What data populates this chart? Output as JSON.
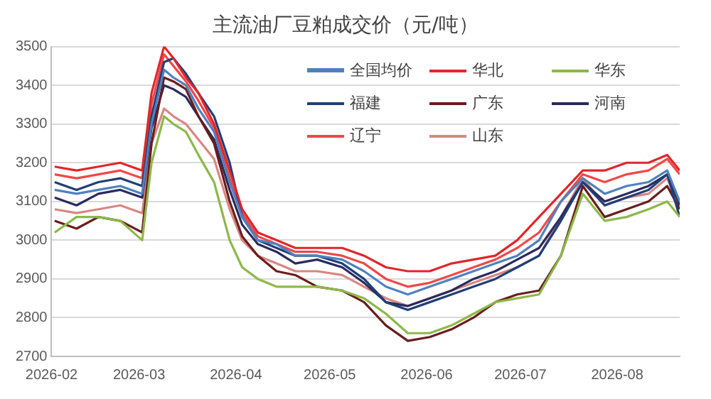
{
  "chart_data": {
    "type": "line",
    "title": "主流油厂豆粕成交价（元/吨）",
    "x": [
      "2026-02-02",
      "2026-02-09",
      "2026-02-16",
      "2026-02-23",
      "2026-03-02",
      "2026-03-05",
      "2026-03-09",
      "2026-03-12",
      "2026-03-16",
      "2026-03-20",
      "2026-03-25",
      "2026-03-30",
      "2026-04-03",
      "2026-04-08",
      "2026-04-14",
      "2026-04-20",
      "2026-04-27",
      "2026-05-05",
      "2026-05-12",
      "2026-05-19",
      "2026-05-26",
      "2026-06-02",
      "2026-06-09",
      "2026-06-16",
      "2026-06-23",
      "2026-06-30",
      "2026-07-07",
      "2026-07-14",
      "2026-07-21",
      "2026-07-28",
      "2026-08-04",
      "2026-08-11",
      "2026-08-17",
      "2026-08-21"
    ],
    "series": [
      {
        "name": "全国均价",
        "color": "#4f81bd",
        "values": [
          3130,
          3120,
          3130,
          3140,
          3120,
          3300,
          3440,
          3420,
          3400,
          3340,
          3280,
          3150,
          3060,
          3000,
          2990,
          2960,
          2960,
          2950,
          2920,
          2880,
          2860,
          2880,
          2900,
          2920,
          2940,
          2960,
          3000,
          3100,
          3160,
          3120,
          3140,
          3150,
          3180,
          3100
        ]
      },
      {
        "name": "华北",
        "color": "#e0262b",
        "values": [
          3190,
          3180,
          3190,
          3200,
          3180,
          3380,
          3500,
          3470,
          3420,
          3380,
          3300,
          3180,
          3080,
          3020,
          3000,
          2980,
          2980,
          2980,
          2960,
          2930,
          2920,
          2920,
          2940,
          2950,
          2960,
          3000,
          3060,
          3120,
          3180,
          3180,
          3200,
          3200,
          3220,
          3180
        ]
      },
      {
        "name": "华东",
        "color": "#8db84a",
        "values": [
          3020,
          3060,
          3060,
          3050,
          3000,
          3200,
          3320,
          3300,
          3280,
          3220,
          3150,
          3000,
          2930,
          2900,
          2880,
          2880,
          2880,
          2870,
          2850,
          2810,
          2760,
          2760,
          2780,
          2810,
          2840,
          2850,
          2860,
          2960,
          3120,
          3050,
          3060,
          3080,
          3100,
          3060
        ]
      },
      {
        "name": "福建",
        "color": "#1f3f77",
        "values": [
          3150,
          3130,
          3150,
          3160,
          3140,
          3320,
          3460,
          3470,
          3430,
          3380,
          3320,
          3200,
          3060,
          3000,
          2980,
          2960,
          2960,
          2940,
          2900,
          2840,
          2820,
          2840,
          2860,
          2880,
          2900,
          2930,
          2960,
          3050,
          3150,
          3090,
          3110,
          3130,
          3170,
          3060
        ]
      },
      {
        "name": "广东",
        "color": "#6b1c1c",
        "values": [
          3050,
          3030,
          3060,
          3050,
          3020,
          3250,
          3420,
          3410,
          3390,
          3320,
          3250,
          3100,
          3010,
          2960,
          2920,
          2910,
          2880,
          2870,
          2840,
          2780,
          2740,
          2750,
          2770,
          2800,
          2840,
          2860,
          2870,
          2960,
          3140,
          3060,
          3080,
          3100,
          3140,
          3080
        ]
      },
      {
        "name": "河南",
        "color": "#2a2a5e",
        "values": [
          3110,
          3090,
          3120,
          3130,
          3110,
          3290,
          3400,
          3390,
          3370,
          3320,
          3260,
          3130,
          3040,
          2990,
          2970,
          2940,
          2950,
          2930,
          2890,
          2840,
          2830,
          2850,
          2870,
          2900,
          2920,
          2950,
          2980,
          3060,
          3150,
          3100,
          3120,
          3140,
          3170,
          3090
        ]
      },
      {
        "name": "辽宁",
        "color": "#f04848",
        "values": [
          3170,
          3160,
          3170,
          3180,
          3160,
          3350,
          3480,
          3450,
          3410,
          3360,
          3290,
          3160,
          3070,
          3010,
          2990,
          2970,
          2970,
          2960,
          2940,
          2900,
          2880,
          2890,
          2910,
          2930,
          2950,
          2980,
          3020,
          3100,
          3170,
          3150,
          3170,
          3180,
          3210,
          3170
        ]
      },
      {
        "name": "山东",
        "color": "#d9877f",
        "values": [
          3080,
          3070,
          3080,
          3090,
          3070,
          3250,
          3340,
          3320,
          3300,
          3260,
          3210,
          3080,
          3000,
          2960,
          2940,
          2920,
          2920,
          2910,
          2880,
          2850,
          2830,
          2850,
          2870,
          2890,
          2910,
          2930,
          2960,
          3060,
          3160,
          3090,
          3110,
          3120,
          3160,
          3090
        ]
      }
    ],
    "xlim": [
      "2026-02-01",
      "2026-08-21"
    ],
    "xticks": [
      "2026-02",
      "2026-03",
      "2026-04",
      "2026-05",
      "2026-06",
      "2026-07",
      "2026-08"
    ],
    "ylim": [
      2700,
      3500
    ],
    "yticks": [
      2700,
      2800,
      2900,
      3000,
      3100,
      3200,
      3300,
      3400,
      3500
    ],
    "grid": "y",
    "legend": "top right",
    "marker": "none",
    "line_style": "solid"
  }
}
